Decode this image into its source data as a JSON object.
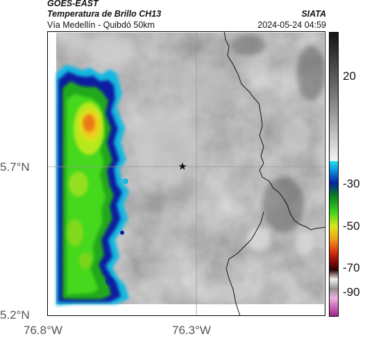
{
  "header": {
    "satellite": "GOES-EAST",
    "product": "Temperatura de Brillo CH13",
    "location": "Vía Medellín - Quibdó 50km",
    "agency": "SIATA",
    "datetime": "2024-05-24 04:59"
  },
  "map": {
    "marker_icon": "star-icon",
    "y_ticks": [
      "5.7°N",
      "5.2°N"
    ],
    "x_ticks": [
      "76.8°W",
      "76.3°W"
    ],
    "colors": {
      "frame": "#000000",
      "gridline": "#9a9a9a",
      "border": "#111111",
      "cloud_core": "#e07a10",
      "cloud_mid": "#33c81e",
      "cloud_edge": "#0a1fa0",
      "background_gray": "#8c8c8c"
    }
  },
  "colorbar": {
    "ticks": [
      "20",
      "-30",
      "-50",
      "-70",
      "-90"
    ]
  }
}
